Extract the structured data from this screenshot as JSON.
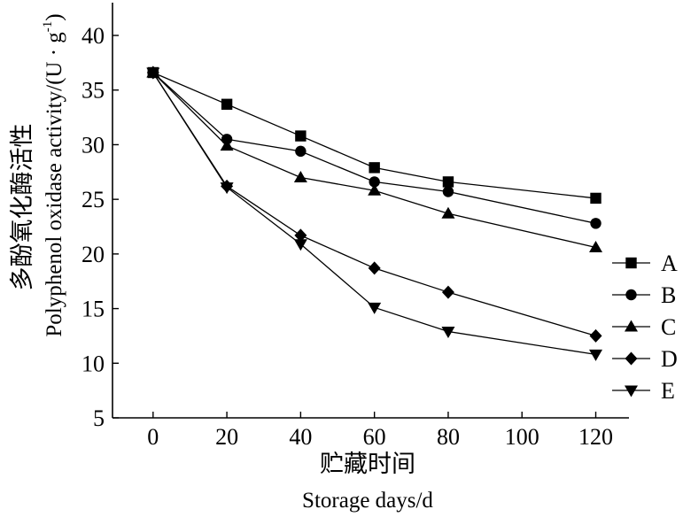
{
  "chart_data": {
    "type": "line",
    "x": [
      0,
      20,
      40,
      60,
      80,
      120
    ],
    "series": [
      {
        "name": "A",
        "marker": "square",
        "values": [
          36.6,
          33.7,
          30.8,
          27.9,
          26.6,
          25.1
        ]
      },
      {
        "name": "B",
        "marker": "circle",
        "values": [
          36.6,
          30.5,
          29.4,
          26.6,
          25.7,
          22.8
        ]
      },
      {
        "name": "C",
        "marker": "triangle-up",
        "values": [
          36.6,
          29.9,
          27.0,
          25.8,
          23.7,
          20.6
        ]
      },
      {
        "name": "D",
        "marker": "diamond",
        "values": [
          36.6,
          26.2,
          21.7,
          18.7,
          16.5,
          12.5
        ]
      },
      {
        "name": "E",
        "marker": "triangle-down",
        "values": [
          36.6,
          26.1,
          20.9,
          15.1,
          12.9,
          10.8
        ]
      }
    ],
    "xticks": [
      0,
      20,
      40,
      60,
      80,
      100,
      120
    ],
    "yticks": [
      5,
      10,
      15,
      20,
      25,
      30,
      35,
      40
    ],
    "xlim": [
      -11,
      129
    ],
    "ylim": [
      5,
      43
    ],
    "ylabel_zh": "多酚氧化酶活性",
    "ylabel_en_main": "Polyphenol oxidase activity/(U · g",
    "ylabel_en_sup": "-1",
    "ylabel_en_end": ")",
    "xlabel_zh": "贮藏时间",
    "xlabel_en": "Storage days/d",
    "legend_position": "right",
    "line_color": "#000000",
    "grid": false
  }
}
